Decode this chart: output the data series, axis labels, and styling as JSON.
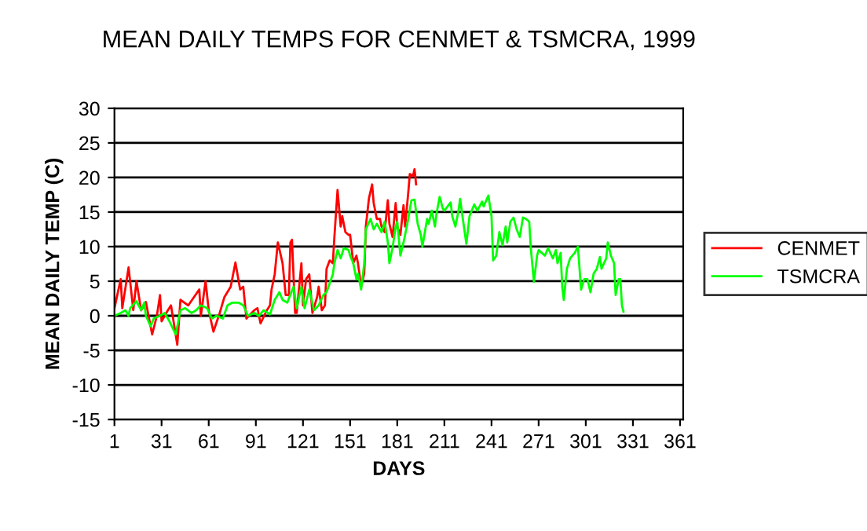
{
  "chart_data": {
    "type": "line",
    "title": "MEAN DAILY TEMPS FOR CENMET & TSMCRA, 1999",
    "xlabel": "DAYS",
    "ylabel": "MEAN DAILY TEMP (C)",
    "xlim": [
      1,
      363
    ],
    "xticks": [
      1,
      31,
      61,
      91,
      121,
      151,
      181,
      211,
      241,
      271,
      301,
      331,
      361
    ],
    "ylim": [
      -15,
      30
    ],
    "yticks": [
      -15,
      -10,
      -5,
      0,
      5,
      10,
      15,
      20,
      25,
      30
    ],
    "grid": "y",
    "legend": "right",
    "marker": "none",
    "line_style": "solid",
    "series": [
      {
        "name": "CENMET",
        "color": "#ff0000",
        "x": [
          1,
          5,
          6,
          10,
          13,
          15,
          18,
          21,
          25,
          28,
          30,
          31,
          35,
          37,
          41,
          43,
          48,
          55,
          56,
          59,
          61,
          64,
          68,
          71,
          75,
          78,
          81,
          83,
          85,
          90,
          92,
          94,
          98,
          100,
          101,
          103,
          105,
          108,
          110,
          112,
          113,
          114,
          116,
          117,
          120,
          121,
          123,
          125,
          127,
          130,
          131,
          133,
          135,
          136,
          138,
          140,
          141,
          143,
          145,
          146,
          148,
          150,
          151,
          153,
          155,
          156,
          158,
          160,
          161,
          163,
          165,
          166,
          168,
          170,
          171,
          173,
          175,
          176,
          178,
          180,
          181,
          183,
          185,
          186,
          188,
          189,
          191,
          192,
          193
        ],
        "values": [
          1.1,
          5.3,
          1.1,
          7,
          0.8,
          5,
          0.8,
          2,
          -2.7,
          0,
          3,
          -0.8,
          0.8,
          1.5,
          -4.2,
          2.3,
          1.5,
          3.8,
          0,
          5,
          0.8,
          -2.3,
          0.4,
          2.7,
          4.2,
          7.7,
          3.8,
          4.2,
          -0.4,
          0.8,
          1.1,
          -1.1,
          0.8,
          1.5,
          3.8,
          6,
          10.6,
          7.6,
          3,
          3,
          10.6,
          11,
          0.4,
          0.4,
          7.6,
          1.5,
          5.3,
          6,
          0.4,
          2.7,
          4.2,
          0.8,
          1.5,
          6.8,
          8,
          7.6,
          11.4,
          18.2,
          12.9,
          14.4,
          12.1,
          11.7,
          11.7,
          7.6,
          8.7,
          7.6,
          4.2,
          6.1,
          12.9,
          17,
          19,
          16.3,
          14,
          14,
          12.9,
          12.1,
          16.7,
          13.3,
          11.4,
          16.3,
          12.9,
          11.7,
          16,
          12.9,
          17.8,
          20.5,
          20.2,
          21.2,
          19
        ]
      },
      {
        "name": "TSMCRA",
        "color": "#00ff00",
        "x": [
          1,
          5,
          8,
          10,
          11,
          15,
          18,
          20,
          21,
          24,
          26,
          30,
          33,
          36,
          40,
          43,
          46,
          50,
          53,
          56,
          60,
          63,
          66,
          70,
          73,
          76,
          80,
          83,
          86,
          90,
          93,
          96,
          100,
          103,
          106,
          108,
          111,
          115,
          117,
          120,
          122,
          125,
          128,
          131,
          134,
          136,
          140,
          141,
          143,
          145,
          147,
          150,
          151,
          153,
          155,
          156,
          158,
          160,
          161,
          164,
          166,
          168,
          171,
          173,
          175,
          176,
          178,
          180,
          181,
          183,
          185,
          186,
          188,
          190,
          192,
          194,
          196,
          197,
          200,
          201,
          203,
          205,
          206,
          208,
          210,
          211,
          215,
          216,
          218,
          220,
          221,
          223,
          225,
          227,
          230,
          232,
          235,
          236,
          239,
          241,
          242,
          244,
          246,
          248,
          250,
          251,
          253,
          255,
          257,
          259,
          261,
          263,
          265,
          266,
          268,
          270,
          271,
          275,
          277,
          280,
          282,
          283,
          285,
          286,
          287,
          289,
          291,
          294,
          296,
          298,
          300,
          302,
          304,
          306,
          308,
          310,
          311,
          314,
          315,
          317,
          319,
          320,
          322,
          323,
          324,
          325
        ],
        "values": [
          0,
          0.4,
          0.8,
          0,
          1.1,
          2.1,
          0.8,
          1.9,
          0,
          -1.5,
          -0.4,
          0,
          0.4,
          -0.8,
          -2.7,
          0.8,
          1.1,
          0.4,
          0.8,
          1.5,
          1.1,
          -0.4,
          0,
          -0.4,
          1.5,
          1.9,
          1.9,
          1.5,
          0,
          0.4,
          0,
          0.8,
          0.2,
          2.3,
          3.4,
          2.3,
          1.9,
          4.2,
          1.1,
          4.2,
          1.1,
          3.8,
          0.8,
          1.5,
          3,
          3.4,
          6,
          7.6,
          9.5,
          8.3,
          9.8,
          9.5,
          8.7,
          7.6,
          5.3,
          6.1,
          3.8,
          7.6,
          12.5,
          14,
          12.5,
          13.3,
          12.1,
          13.6,
          10.6,
          7.6,
          9.8,
          12.9,
          13.6,
          8.7,
          10.6,
          11.7,
          14,
          16.7,
          16.8,
          13.3,
          11.7,
          10,
          14,
          13.3,
          15.2,
          12.9,
          14.8,
          17.2,
          15.5,
          15.2,
          16.4,
          14.4,
          12.9,
          15.2,
          16.9,
          13.6,
          10.4,
          14.4,
          16.1,
          15.2,
          16.5,
          15.8,
          17.4,
          14.4,
          8,
          8.7,
          12.1,
          10.2,
          12.9,
          10.6,
          13.6,
          14.2,
          12.5,
          11.4,
          14.2,
          14,
          13.6,
          9.8,
          4.9,
          8.7,
          9.5,
          8.7,
          9.8,
          8.3,
          9.5,
          7.6,
          9.1,
          4.2,
          2.3,
          6.8,
          8.3,
          9.1,
          10,
          3.8,
          5.3,
          5.3,
          3.4,
          6.1,
          6.8,
          8.5,
          6.8,
          8.3,
          10.6,
          8.7,
          7.6,
          3,
          5.3,
          5.3,
          1.5,
          0.6
        ]
      }
    ]
  }
}
